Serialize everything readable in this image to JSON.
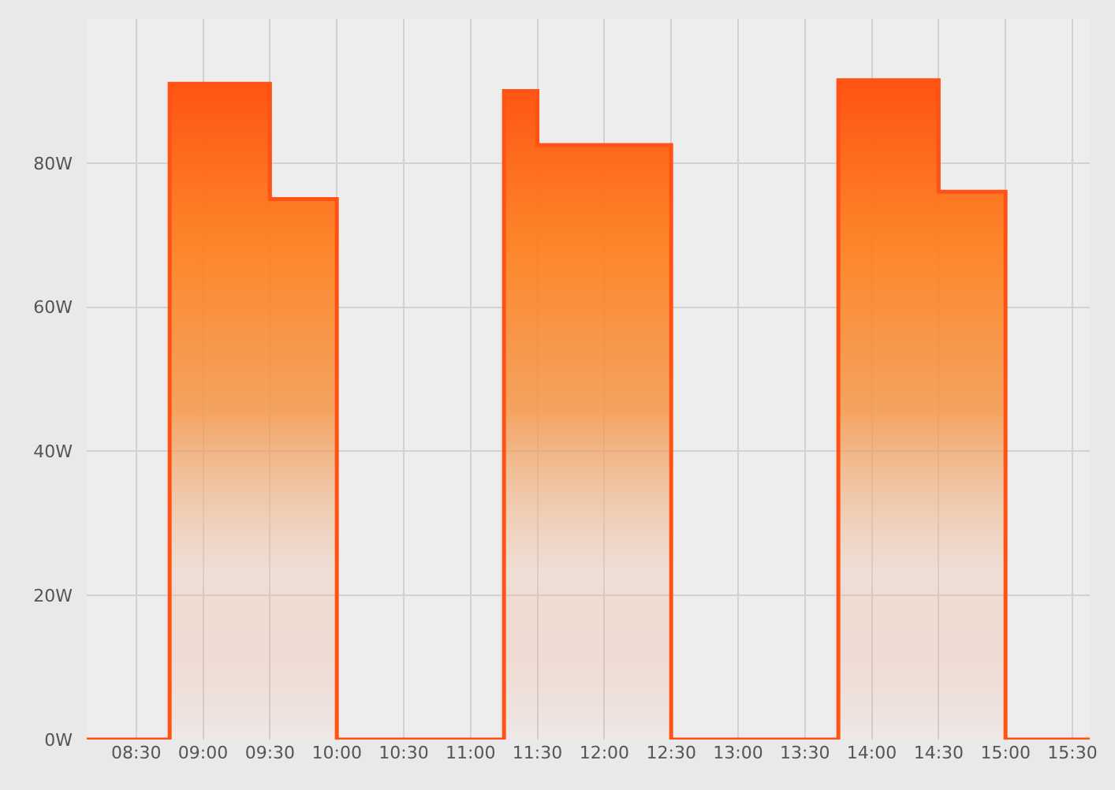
{
  "chart_data": {
    "type": "step",
    "x": [
      8.13,
      8.75,
      9.5,
      10.0,
      11.25,
      11.5,
      12.5,
      13.75,
      14.5,
      15.0,
      15.63
    ],
    "values": [
      0,
      91,
      75,
      0,
      90,
      82.5,
      0,
      91.5,
      76,
      0,
      0
    ],
    "color": "#ff5214",
    "xlim": [
      8.13,
      15.63
    ],
    "xticks": [
      {
        "value": 8.5,
        "label": "08:30"
      },
      {
        "value": 9,
        "label": "09:00"
      },
      {
        "value": 9.5,
        "label": "09:30"
      },
      {
        "value": 10,
        "label": "10:00"
      },
      {
        "value": 10.5,
        "label": "10:30"
      },
      {
        "value": 11,
        "label": "11:00"
      },
      {
        "value": 11.5,
        "label": "11:30"
      },
      {
        "value": 12,
        "label": "12:00"
      },
      {
        "value": 12.5,
        "label": "12:30"
      },
      {
        "value": 13,
        "label": "13:00"
      },
      {
        "value": 13.5,
        "label": "13:30"
      },
      {
        "value": 14,
        "label": "14:00"
      },
      {
        "value": 14.5,
        "label": "14:30"
      },
      {
        "value": 15,
        "label": "15:00"
      },
      {
        "value": 15.5,
        "label": "15:30"
      }
    ],
    "ylim": [
      0,
      100
    ],
    "yticks": [
      {
        "value": 0,
        "label": "0W"
      },
      {
        "value": 20,
        "label": "20W"
      },
      {
        "value": 40,
        "label": "40W"
      },
      {
        "value": 60,
        "label": "60W"
      },
      {
        "value": 80,
        "label": "80W"
      }
    ],
    "grid": true
  }
}
